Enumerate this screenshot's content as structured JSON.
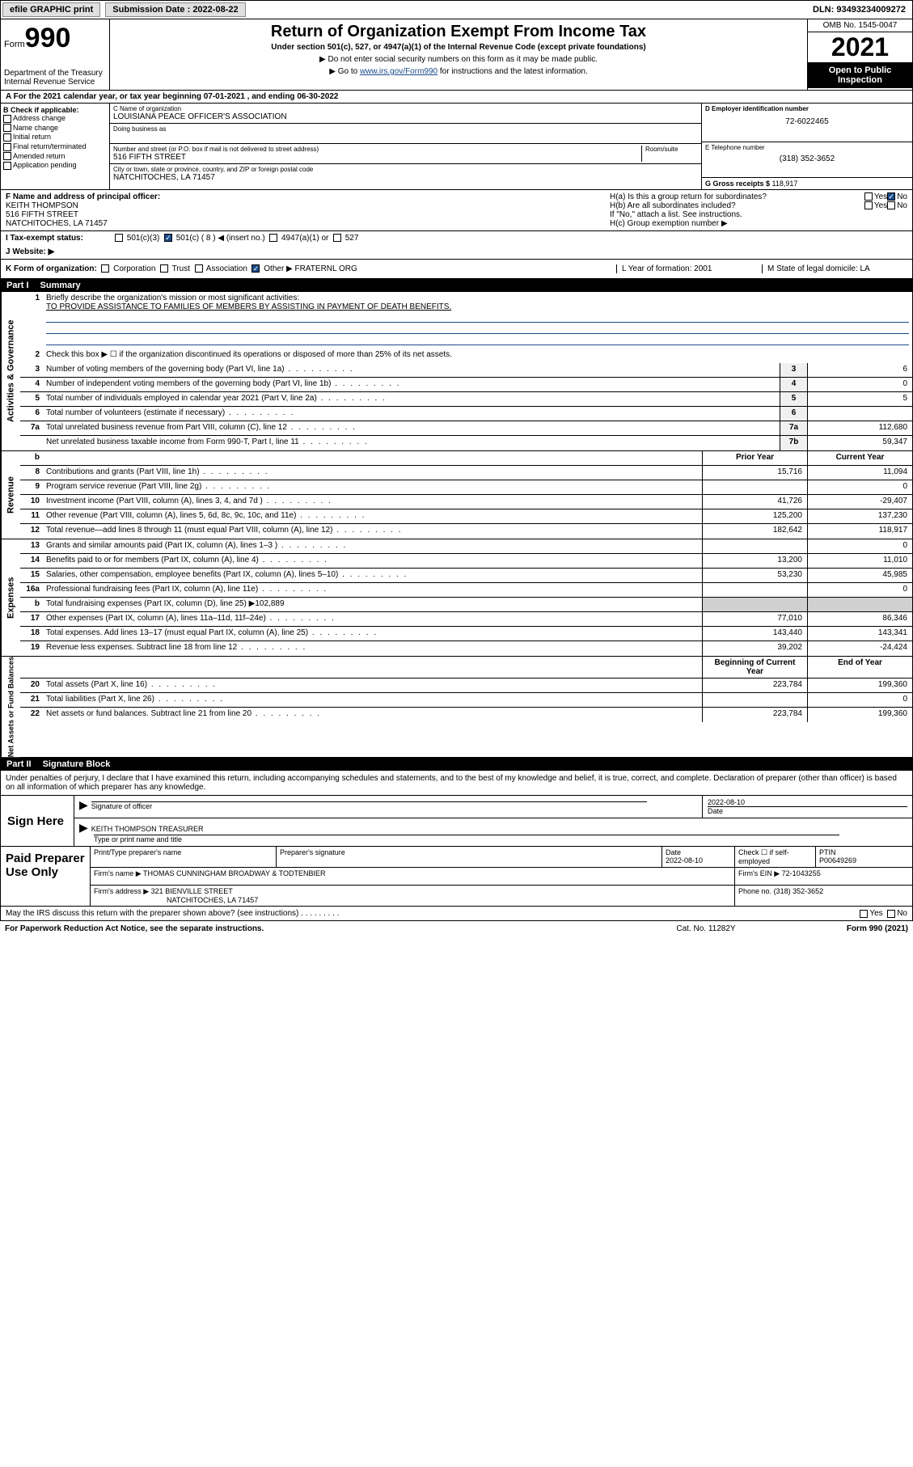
{
  "topbar": {
    "efile": "efile GRAPHIC print",
    "submission_label": "Submission Date : 2022-08-22",
    "dln": "DLN: 93493234009272"
  },
  "header": {
    "form_word": "Form",
    "form_num": "990",
    "dept": "Department of the Treasury\nInternal Revenue Service",
    "title": "Return of Organization Exempt From Income Tax",
    "sub1": "Under section 501(c), 527, or 4947(a)(1) of the Internal Revenue Code (except private foundations)",
    "sub2": "▶ Do not enter social security numbers on this form as it may be made public.",
    "sub3_pre": "▶ Go to ",
    "sub3_link": "www.irs.gov/Form990",
    "sub3_post": " for instructions and the latest information.",
    "omb": "OMB No. 1545-0047",
    "year": "2021",
    "open_pub": "Open to Public Inspection"
  },
  "row_a": "A For the 2021 calendar year, or tax year beginning 07-01-2021  , and ending 06-30-2022",
  "col_b": {
    "hdr": "B Check if applicable:",
    "opts": [
      "Address change",
      "Name change",
      "Initial return",
      "Final return/terminated",
      "Amended return",
      "Application pending"
    ]
  },
  "col_c": {
    "name_lbl": "C Name of organization",
    "name": "LOUISIANA PEACE OFFICER'S ASSOCIATION",
    "dba_lbl": "Doing business as",
    "addr_lbl": "Number and street (or P.O. box if mail is not delivered to street address)",
    "room_lbl": "Room/suite",
    "addr": "516 FIFTH STREET",
    "city_lbl": "City or town, state or province, country, and ZIP or foreign postal code",
    "city": "NATCHITOCHES, LA  71457"
  },
  "col_d": {
    "lbl": "D Employer identification number",
    "val": "72-6022465"
  },
  "col_e": {
    "lbl": "E Telephone number",
    "val": "(318) 352-3652"
  },
  "col_g": {
    "lbl": "G Gross receipts $ ",
    "val": "118,917"
  },
  "row_f": {
    "lbl": "F Name and address of principal officer:",
    "line1": "KEITH THOMPSON",
    "line2": "516 FIFTH STREET",
    "line3": "NATCHITOCHES, LA  71457"
  },
  "row_h": {
    "ha": "H(a)  Is this a group return for subordinates?",
    "hb": "H(b)  Are all subordinates included?",
    "hnote": "If \"No,\" attach a list. See instructions.",
    "hc": "H(c)  Group exemption number ▶"
  },
  "row_i": {
    "lbl": "I   Tax-exempt status:",
    "o1": "501(c)(3)",
    "o2": "501(c) ( 8 ) ◀ (insert no.)",
    "o3": "4947(a)(1) or",
    "o4": "527"
  },
  "row_j": "J   Website: ▶",
  "row_k": {
    "lbl": "K Form of organization:",
    "o1": "Corporation",
    "o2": "Trust",
    "o3": "Association",
    "o4": "Other ▶",
    "other_val": "FRATERNL ORG",
    "l": "L Year of formation: 2001",
    "m": "M State of legal domicile: LA"
  },
  "part1": {
    "num": "Part I",
    "title": "Summary"
  },
  "summary": {
    "q1": "Briefly describe the organization's mission or most significant activities:",
    "mission": "TO PROVIDE ASSISTANCE TO FAMILIES OF MEMBERS BY ASSISTING IN PAYMENT OF DEATH BENEFITS.",
    "q2": "Check this box ▶ ☐  if the organization discontinued its operations or disposed of more than 25% of its net assets.",
    "rows_ag": [
      {
        "n": "3",
        "d": "Number of voting members of the governing body (Part VI, line 1a)",
        "k": "3",
        "v": "6"
      },
      {
        "n": "4",
        "d": "Number of independent voting members of the governing body (Part VI, line 1b)",
        "k": "4",
        "v": "0"
      },
      {
        "n": "5",
        "d": "Total number of individuals employed in calendar year 2021 (Part V, line 2a)",
        "k": "5",
        "v": "5"
      },
      {
        "n": "6",
        "d": "Total number of volunteers (estimate if necessary)",
        "k": "6",
        "v": ""
      },
      {
        "n": "7a",
        "d": "Total unrelated business revenue from Part VIII, column (C), line 12",
        "k": "7a",
        "v": "112,680"
      },
      {
        "n": "",
        "d": "Net unrelated business taxable income from Form 990-T, Part I, line 11",
        "k": "7b",
        "v": "59,347"
      }
    ],
    "col_hdr_prior": "Prior Year",
    "col_hdr_curr": "Current Year",
    "rows_rev": [
      {
        "n": "8",
        "d": "Contributions and grants (Part VIII, line 1h)",
        "p": "15,716",
        "c": "11,094"
      },
      {
        "n": "9",
        "d": "Program service revenue (Part VIII, line 2g)",
        "p": "",
        "c": "0"
      },
      {
        "n": "10",
        "d": "Investment income (Part VIII, column (A), lines 3, 4, and 7d )",
        "p": "41,726",
        "c": "-29,407"
      },
      {
        "n": "11",
        "d": "Other revenue (Part VIII, column (A), lines 5, 6d, 8c, 9c, 10c, and 11e)",
        "p": "125,200",
        "c": "137,230"
      },
      {
        "n": "12",
        "d": "Total revenue—add lines 8 through 11 (must equal Part VIII, column (A), line 12)",
        "p": "182,642",
        "c": "118,917"
      }
    ],
    "rows_exp": [
      {
        "n": "13",
        "d": "Grants and similar amounts paid (Part IX, column (A), lines 1–3 )",
        "p": "",
        "c": "0"
      },
      {
        "n": "14",
        "d": "Benefits paid to or for members (Part IX, column (A), line 4)",
        "p": "13,200",
        "c": "11,010"
      },
      {
        "n": "15",
        "d": "Salaries, other compensation, employee benefits (Part IX, column (A), lines 5–10)",
        "p": "53,230",
        "c": "45,985"
      },
      {
        "n": "16a",
        "d": "Professional fundraising fees (Part IX, column (A), line 11e)",
        "p": "",
        "c": "0"
      },
      {
        "n": "b",
        "d": "Total fundraising expenses (Part IX, column (D), line 25) ▶102,889",
        "p": "—shade—",
        "c": "—shade—"
      },
      {
        "n": "17",
        "d": "Other expenses (Part IX, column (A), lines 11a–11d, 11f–24e)",
        "p": "77,010",
        "c": "86,346"
      },
      {
        "n": "18",
        "d": "Total expenses. Add lines 13–17 (must equal Part IX, column (A), line 25)",
        "p": "143,440",
        "c": "143,341"
      },
      {
        "n": "19",
        "d": "Revenue less expenses. Subtract line 18 from line 12",
        "p": "39,202",
        "c": "-24,424"
      }
    ],
    "col_hdr_beg": "Beginning of Current Year",
    "col_hdr_end": "End of Year",
    "rows_net": [
      {
        "n": "20",
        "d": "Total assets (Part X, line 16)",
        "p": "223,784",
        "c": "199,360"
      },
      {
        "n": "21",
        "d": "Total liabilities (Part X, line 26)",
        "p": "",
        "c": "0"
      },
      {
        "n": "22",
        "d": "Net assets or fund balances. Subtract line 21 from line 20",
        "p": "223,784",
        "c": "199,360"
      }
    ]
  },
  "sidebars": {
    "ag": "Activities & Governance",
    "rev": "Revenue",
    "exp": "Expenses",
    "net": "Net Assets or Fund Balances"
  },
  "part2": {
    "num": "Part II",
    "title": "Signature Block"
  },
  "sig": {
    "intro": "Under penalties of perjury, I declare that I have examined this return, including accompanying schedules and statements, and to the best of my knowledge and belief, it is true, correct, and complete. Declaration of preparer (other than officer) is based on all information of which preparer has any knowledge.",
    "sign_here": "Sign Here",
    "sig_lbl": "Signature of officer",
    "date_lbl": "Date",
    "date_val": "2022-08-10",
    "name": "KEITH THOMPSON  TREASURER",
    "name_lbl": "Type or print name and title"
  },
  "prep": {
    "hdr": "Paid Preparer Use Only",
    "c1": "Print/Type preparer's name",
    "c2": "Preparer's signature",
    "c3": "Date",
    "c3v": "2022-08-10",
    "c4": "Check ☐ if self-employed",
    "c5": "PTIN",
    "c5v": "P00649269",
    "firm_lbl": "Firm's name    ▶",
    "firm": "THOMAS CUNNINGHAM BROADWAY & TODTENBIER",
    "ein_lbl": "Firm's EIN ▶",
    "ein": "72-1043255",
    "addr_lbl": "Firm's address ▶",
    "addr1": "321 BIENVILLE STREET",
    "addr2": "NATCHITOCHES, LA  71457",
    "phone_lbl": "Phone no.",
    "phone": "(318) 352-3652"
  },
  "footer": {
    "discuss": "May the IRS discuss this return with the preparer shown above? (see instructions)",
    "paperwork": "For Paperwork Reduction Act Notice, see the separate instructions.",
    "cat": "Cat. No. 11282Y",
    "form": "Form 990 (2021)"
  },
  "colors": {
    "link": "#1a4b8b",
    "shade": "#d0d0d0"
  }
}
